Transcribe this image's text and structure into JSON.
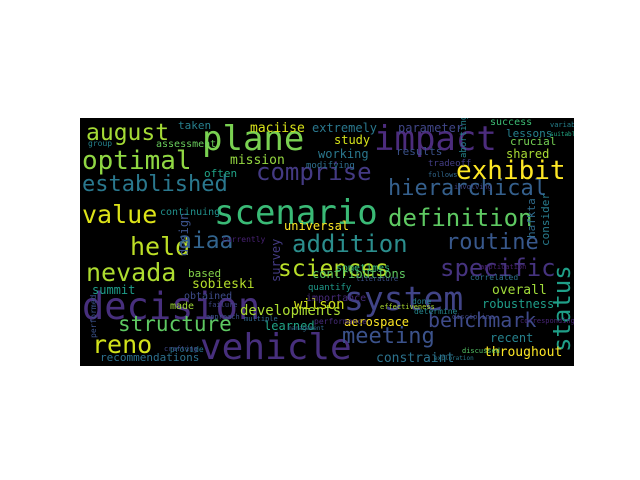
{
  "word_cloud": {
    "words": [
      {
        "text": "decision",
        "color": "#472f7d"
      },
      {
        "text": "vehicle",
        "color": "#472f7d"
      },
      {
        "text": "system",
        "color": "#414487"
      },
      {
        "text": "scenario",
        "color": "#3aba76"
      },
      {
        "text": "plane",
        "color": "#7ad151"
      },
      {
        "text": "impact",
        "color": "#4c2c7d"
      },
      {
        "text": "comprise",
        "color": "#443a83"
      },
      {
        "text": "definition",
        "color": "#5ec962"
      },
      {
        "text": "hierarchical",
        "color": "#35608d"
      },
      {
        "text": "addition",
        "color": "#2b8e8d"
      },
      {
        "text": "sciences",
        "color": "#b8de29"
      },
      {
        "text": "established",
        "color": "#2a788e"
      },
      {
        "text": "optimal",
        "color": "#90d743"
      },
      {
        "text": "specific",
        "color": "#46337f"
      },
      {
        "text": "exhibit",
        "color": "#fde725"
      },
      {
        "text": "routine",
        "color": "#38588c"
      },
      {
        "text": "meeting",
        "color": "#3b528b"
      },
      {
        "text": "status",
        "color": "#1f9f88"
      },
      {
        "text": "nevada",
        "color": "#addc30"
      },
      {
        "text": "august",
        "color": "#a5db36"
      },
      {
        "text": "value",
        "color": "#dde318"
      },
      {
        "text": "held",
        "color": "#bddf26"
      },
      {
        "text": "aiaa",
        "color": "#32648e"
      },
      {
        "text": "structure",
        "color": "#5ec962"
      },
      {
        "text": "benchmark",
        "color": "#3e4a89"
      },
      {
        "text": "reno",
        "color": "#d2e21b"
      },
      {
        "text": "developments",
        "color": "#aadc32"
      },
      {
        "text": "universal",
        "color": "#fde725"
      },
      {
        "text": "parameter",
        "color": "#404688"
      },
      {
        "text": "maciise",
        "color": "#d8e219"
      },
      {
        "text": "extremely",
        "color": "#2a788e"
      },
      {
        "text": "mission",
        "color": "#95d840"
      },
      {
        "text": "sobieski",
        "color": "#b5de2b"
      },
      {
        "text": "wilson",
        "color": "#d0e11c"
      },
      {
        "text": "aerospace",
        "color": "#fde725"
      },
      {
        "text": "throughout",
        "color": "#fde725"
      },
      {
        "text": "constraint",
        "color": "#2c738e"
      },
      {
        "text": "recent",
        "color": "#26828e"
      },
      {
        "text": "overall",
        "color": "#a0da39"
      },
      {
        "text": "robustness",
        "color": "#1f9e89"
      },
      {
        "text": "learned",
        "color": "#20a486"
      },
      {
        "text": "summit",
        "color": "#1e9c89"
      },
      {
        "text": "recommendations",
        "color": "#2d708e"
      },
      {
        "text": "shared",
        "color": "#a8db34"
      },
      {
        "text": "lessons",
        "color": "#26828e"
      },
      {
        "text": "crucial",
        "color": "#75d054"
      },
      {
        "text": "success",
        "color": "#3dbc74"
      },
      {
        "text": "hafkta",
        "color": "#2f6c8e"
      },
      {
        "text": "consider",
        "color": "#287c8e"
      },
      {
        "text": "design",
        "color": "#3b528b"
      },
      {
        "text": "survey",
        "color": "#443b84"
      },
      {
        "text": "study",
        "color": "#d5e21a"
      },
      {
        "text": "working",
        "color": "#2a788e"
      },
      {
        "text": "contributions",
        "color": "#5ec962"
      },
      {
        "text": "results",
        "color": "#3b528b"
      },
      {
        "text": "tradeoff",
        "color": "#433e85"
      },
      {
        "text": "modifying",
        "color": "#2e6f8e"
      },
      {
        "text": "aborting",
        "color": "#25848e"
      },
      {
        "text": "often",
        "color": "#20a386"
      },
      {
        "text": "taken",
        "color": "#27808e"
      },
      {
        "text": "assessment",
        "color": "#69cd5b"
      },
      {
        "text": "continuing",
        "color": "#21918c"
      },
      {
        "text": "based",
        "color": "#84d44b"
      },
      {
        "text": "obtained",
        "color": "#3e4c8a"
      },
      {
        "text": "made",
        "color": "#a2da37"
      },
      {
        "text": "importance",
        "color": "#472a7a"
      },
      {
        "text": "quantify",
        "color": "#1f9a8a"
      },
      {
        "text": "sometimes",
        "color": "#35b779"
      },
      {
        "text": "currently",
        "color": "#482173"
      },
      {
        "text": "performance",
        "color": "#472c7a"
      },
      {
        "text": "provide",
        "color": "#2a768e"
      },
      {
        "text": "group",
        "color": "#25838e"
      },
      {
        "text": "literature",
        "color": "#3b528b"
      },
      {
        "text": "determine",
        "color": "#24868e"
      },
      {
        "text": "correlated",
        "color": "#2c728e"
      },
      {
        "text": "done",
        "color": "#26828e"
      },
      {
        "text": "effectiveness",
        "color": "#addc30"
      },
      {
        "text": "discussed",
        "color": "#56c667"
      },
      {
        "text": "multiple",
        "color": "#31678e"
      },
      {
        "text": "failure",
        "color": "#3f4889"
      },
      {
        "text": "approach",
        "color": "#3b528b"
      },
      {
        "text": "exploration",
        "color": "#29798e"
      },
      {
        "text": "discipline",
        "color": "#3f4788"
      },
      {
        "text": "management",
        "color": "#2f6b8e"
      },
      {
        "text": "follows",
        "color": "#31688e"
      },
      {
        "text": "corresponding",
        "color": "#482677"
      },
      {
        "text": "variable",
        "color": "#26828e"
      },
      {
        "text": "crafting",
        "color": "#3e4989"
      },
      {
        "text": "suitable",
        "color": "#22a884"
      },
      {
        "text": "performed",
        "color": "#3b528b"
      },
      {
        "text": "application",
        "color": "#482071"
      },
      {
        "text": "involving",
        "color": "#404688"
      }
    ]
  }
}
